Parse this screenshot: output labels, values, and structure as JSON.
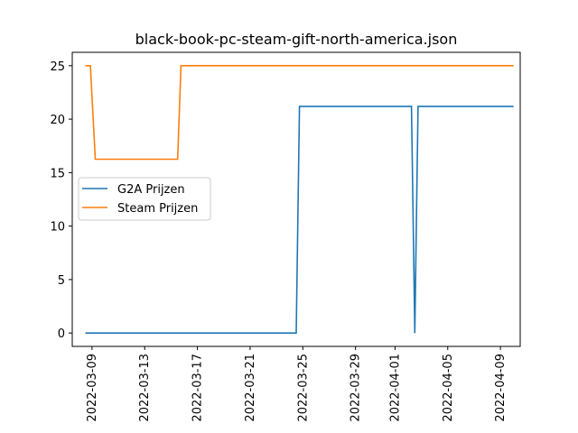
{
  "chart_data": {
    "type": "line",
    "title": "black-book-pc-steam-gift-north-america.json",
    "xlabel": "",
    "ylabel": "",
    "xlim": [
      "2022-03-07T12:00",
      "2022-04-10T12:00"
    ],
    "ylim": [
      -1.25,
      26.25
    ],
    "x_ticks": [
      "2022-03-09",
      "2022-03-13",
      "2022-03-17",
      "2022-03-21",
      "2022-03-25",
      "2022-03-29",
      "2022-04-01",
      "2022-04-05",
      "2022-04-09"
    ],
    "y_ticks": [
      0,
      5,
      10,
      15,
      20,
      25
    ],
    "grid": false,
    "legend_position": "center-left",
    "series": [
      {
        "name": "G2A Prijzen",
        "color": "#1f77b4",
        "points": [
          {
            "x": "2022-03-08T12:00",
            "y": 0
          },
          {
            "x": "2022-03-24T12:00",
            "y": 0
          },
          {
            "x": "2022-03-24T18:00",
            "y": 21.2
          },
          {
            "x": "2022-04-02T06:00",
            "y": 21.2
          },
          {
            "x": "2022-04-02T12:00",
            "y": 0
          },
          {
            "x": "2022-04-02T18:00",
            "y": 21.2
          },
          {
            "x": "2022-04-10T00:00",
            "y": 21.2
          }
        ]
      },
      {
        "name": "Steam Prijzen",
        "color": "#ff7f0e",
        "points": [
          {
            "x": "2022-03-08T12:00",
            "y": 25
          },
          {
            "x": "2022-03-08T21:00",
            "y": 25
          },
          {
            "x": "2022-03-09T06:00",
            "y": 16.25
          },
          {
            "x": "2022-03-15T12:00",
            "y": 16.25
          },
          {
            "x": "2022-03-15T18:00",
            "y": 25
          },
          {
            "x": "2022-04-10T00:00",
            "y": 25
          }
        ]
      }
    ]
  }
}
